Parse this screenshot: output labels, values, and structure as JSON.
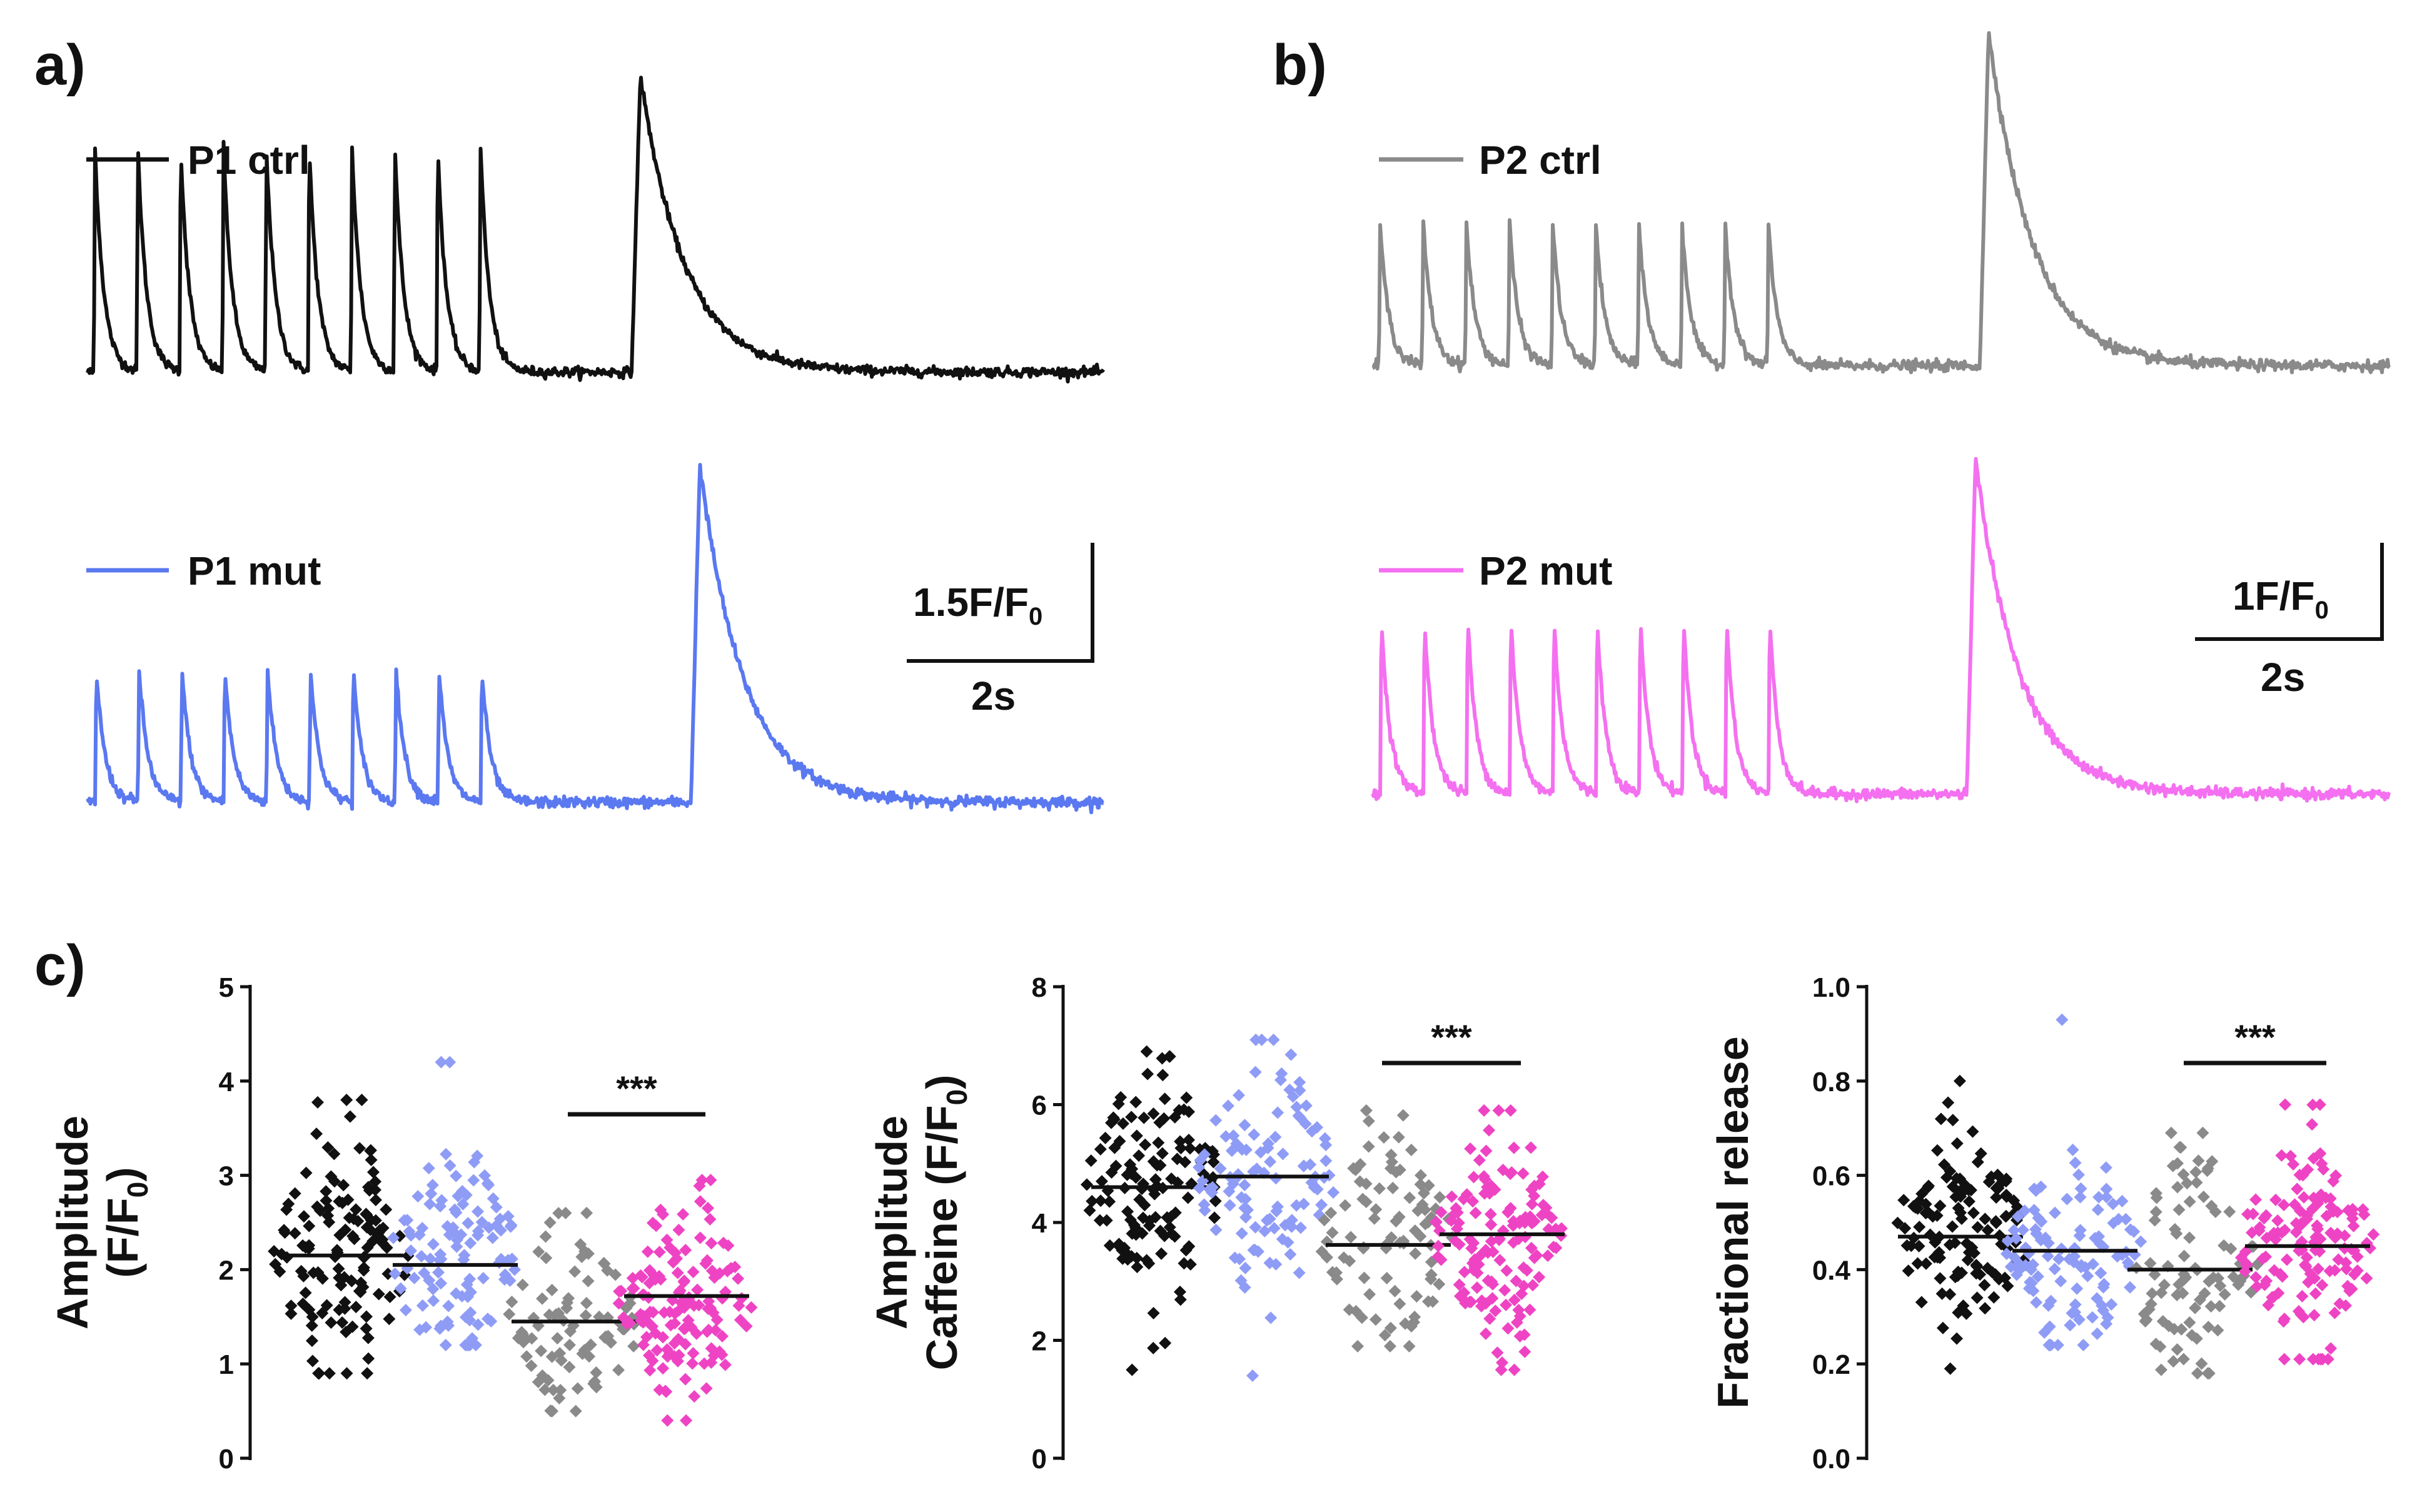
{
  "panels": {
    "a": "a)",
    "b": "b)",
    "c": "c)"
  },
  "colors": {
    "p1_ctrl": "#111111",
    "p1_mut": "#5a78f0",
    "p2_ctrl": "#8a8a8a",
    "p2_mut": "#f470f0",
    "scatter_p1_mut": "#8f9cf6",
    "scatter_p2_mut": "#ee44c4"
  },
  "traces": {
    "a": {
      "scale_y": "1.5F/F",
      "scale_y_sub": "0",
      "scale_x": "2s",
      "series": [
        {
          "name": "P1 ctrl",
          "color": "#111111",
          "n_pulses": 10,
          "pulse_peak": 0.75,
          "caffeine_peak": 1.0
        },
        {
          "name": "P1 mut",
          "color": "#5a78f0",
          "n_pulses": 10,
          "pulse_peak": 0.39,
          "caffeine_peak": 1.0
        }
      ]
    },
    "b": {
      "scale_y": "1F/F",
      "scale_y_sub": "0",
      "scale_x": "2s",
      "series": [
        {
          "name": "P2 ctrl",
          "color": "#8a8a8a",
          "n_pulses": 10,
          "pulse_peak": 0.42,
          "caffeine_peak": 1.0
        },
        {
          "name": "P2 mut",
          "color": "#f470f0",
          "n_pulses": 10,
          "pulse_peak": 0.52,
          "caffeine_peak": 1.0
        }
      ]
    }
  },
  "chart_data": [
    {
      "type": "scatter",
      "ylabel_line1": "Amplitude",
      "ylabel_line2": "(F/F",
      "ylabel_line2_sub": "0",
      "ylabel_line2_end": ")",
      "ylim": [
        0,
        5
      ],
      "yticks": [
        0,
        1,
        2,
        3,
        4,
        5
      ],
      "tick_labels": [
        "0",
        "1",
        "2",
        "3",
        "4",
        "5"
      ],
      "significance": "***",
      "groups": [
        {
          "name": "P1 ctrl",
          "color": "#111111",
          "mean": 2.15,
          "sd": 0.65,
          "min": 0.9,
          "max": 3.8,
          "n": 130
        },
        {
          "name": "P1 mut",
          "color": "#8f9cf6",
          "mean": 2.05,
          "sd": 0.6,
          "min": 1.2,
          "max": 4.2,
          "n": 110
        },
        {
          "name": "P2 ctrl",
          "color": "#8a8a8a",
          "mean": 1.45,
          "sd": 0.48,
          "min": 0.5,
          "max": 2.6,
          "n": 90
        },
        {
          "name": "P2 mut",
          "color": "#ee44c4",
          "mean": 1.72,
          "sd": 0.52,
          "min": 0.4,
          "max": 2.95,
          "n": 140
        }
      ]
    },
    {
      "type": "scatter",
      "ylabel_line1": "Amplitude",
      "ylabel_line2": "Caffeine (F/F",
      "ylabel_line2_sub": "0",
      "ylabel_line2_end": ")",
      "ylim": [
        0,
        8
      ],
      "yticks": [
        0,
        2,
        4,
        6,
        8
      ],
      "tick_labels": [
        "0",
        "2",
        "4",
        "6",
        "8"
      ],
      "significance": "***",
      "groups": [
        {
          "name": "P1 ctrl",
          "color": "#111111",
          "mean": 4.6,
          "sd": 0.9,
          "min": 1.5,
          "max": 6.9,
          "n": 130
        },
        {
          "name": "P1 mut",
          "color": "#8f9cf6",
          "mean": 4.78,
          "sd": 1.0,
          "min": 1.4,
          "max": 7.1,
          "n": 110
        },
        {
          "name": "P2 ctrl",
          "color": "#8a8a8a",
          "mean": 3.62,
          "sd": 0.95,
          "min": 1.9,
          "max": 5.9,
          "n": 90
        },
        {
          "name": "P2 mut",
          "color": "#ee44c4",
          "mean": 3.8,
          "sd": 0.85,
          "min": 1.5,
          "max": 5.9,
          "n": 140
        }
      ]
    },
    {
      "type": "scatter",
      "ylabel_line1": "Fractional release",
      "ylim": [
        0,
        1.0
      ],
      "yticks": [
        0,
        0.2,
        0.4,
        0.6,
        0.8,
        1.0
      ],
      "tick_labels": [
        "0.0",
        "0.2",
        "0.4",
        "0.6",
        "0.8",
        "1.0"
      ],
      "significance": "***",
      "groups": [
        {
          "name": "P1 ctrl",
          "color": "#111111",
          "mean": 0.47,
          "sd": 0.11,
          "min": 0.19,
          "max": 0.8,
          "n": 130
        },
        {
          "name": "P1 mut",
          "color": "#8f9cf6",
          "mean": 0.44,
          "sd": 0.1,
          "min": 0.24,
          "max": 0.93,
          "n": 110
        },
        {
          "name": "P2 ctrl",
          "color": "#8a8a8a",
          "mean": 0.4,
          "sd": 0.11,
          "min": 0.18,
          "max": 0.69,
          "n": 90
        },
        {
          "name": "P2 mut",
          "color": "#ee44c4",
          "mean": 0.45,
          "sd": 0.11,
          "min": 0.21,
          "max": 0.75,
          "n": 140
        }
      ]
    }
  ]
}
